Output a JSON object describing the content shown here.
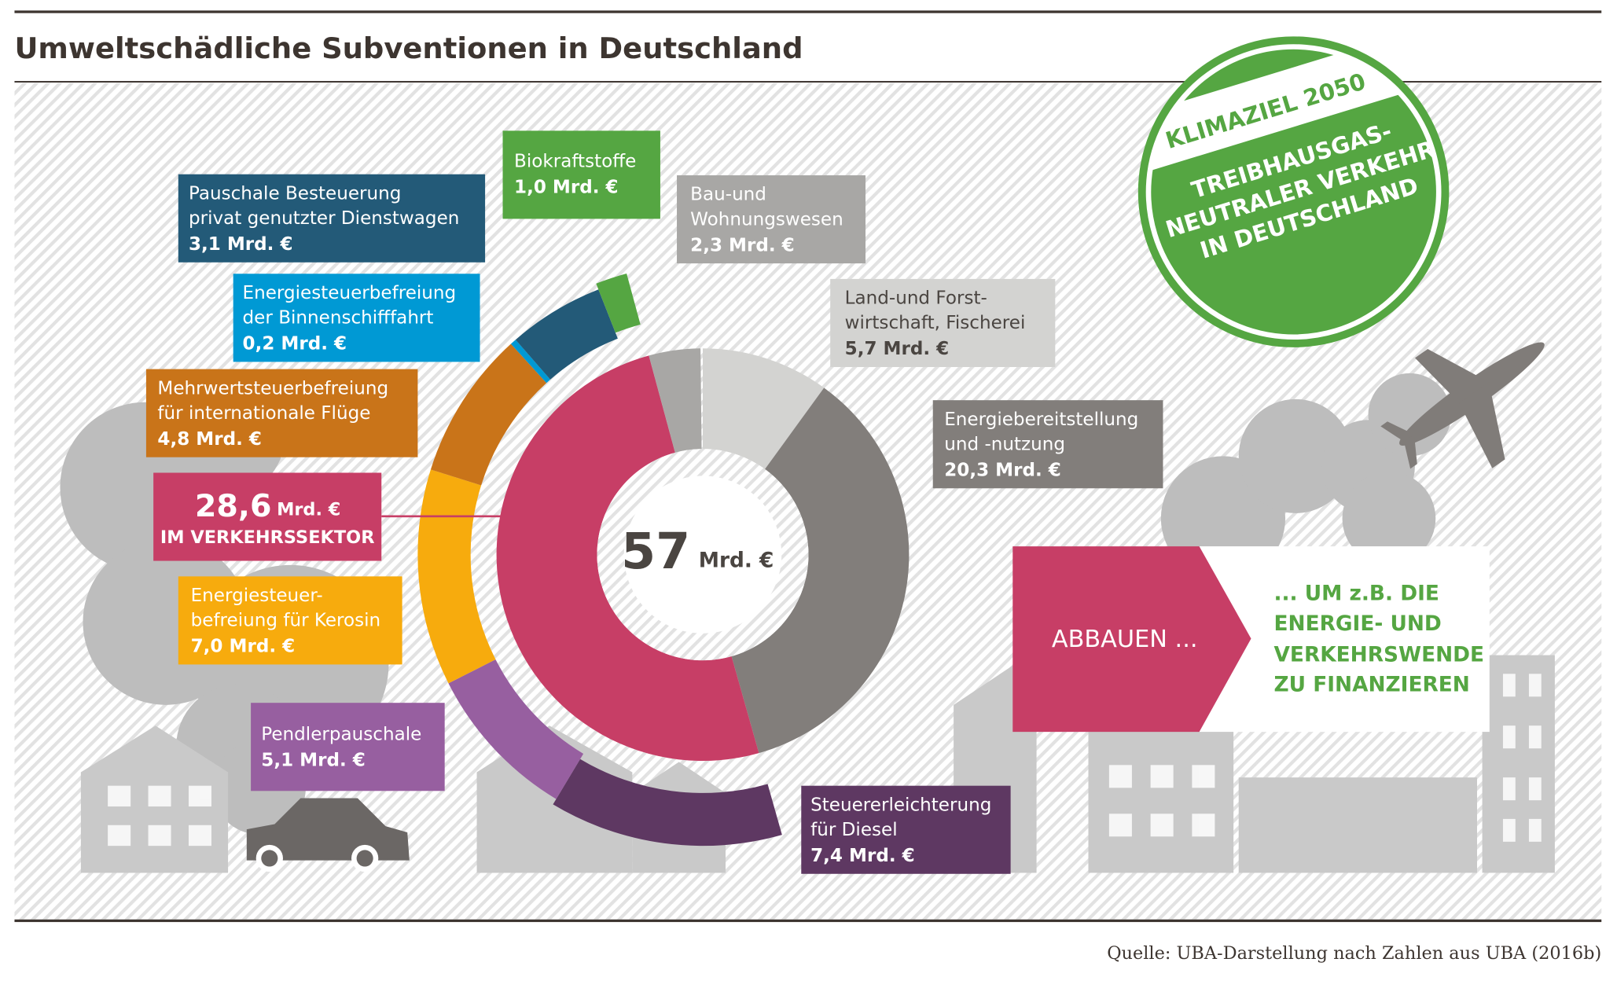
{
  "title": "Umweltschädliche Subventionen in Deutschland",
  "source": "Quelle: UBA-Darstellung nach Zahlen aus UBA (2016b)",
  "center_label": {
    "value": "57",
    "unit": "Mrd. €"
  },
  "stamp": {
    "band": "KLIMAZIEL 2050",
    "lines": [
      "TREIBHAUSGAS-",
      "NEUTRALER VERKEHR",
      "IN DEUTSCHLAND"
    ],
    "color": "#55a642"
  },
  "transport_total": {
    "value": "28,6",
    "unit": "Mrd. €",
    "caption": "IM VERKEHRSSEKTOR"
  },
  "arrow": {
    "label": "ABBAUEN ...",
    "target_lines": [
      "... UM z.B. DIE",
      "ENERGIE- UND",
      "VERKEHRSWENDE",
      "ZU FINANZIEREN"
    ]
  },
  "labels": {
    "dienstwagen": {
      "lines": [
        "Pauschale Besteuerung",
        "privat genutzter Dienstwagen"
      ],
      "value": "3,1 Mrd. €"
    },
    "bio": {
      "lines": [
        "Biokraftstoffe"
      ],
      "value": "1,0 Mrd. €"
    },
    "bau": {
      "lines": [
        "Bau-und",
        "Wohnungswesen"
      ],
      "value": "2,3 Mrd. €"
    },
    "binnen": {
      "lines": [
        "Energiesteuerbefreiung",
        "der Binnenschifffahrt"
      ],
      "value": "0,2 Mrd. €"
    },
    "land": {
      "lines": [
        "Land-und Forst-",
        "wirtschaft, Fischerei"
      ],
      "value": "5,7 Mrd. €"
    },
    "mwst": {
      "lines": [
        "Mehrwertsteuerbefreiung",
        "für internationale Flüge"
      ],
      "value": "4,8 Mrd. €"
    },
    "energie": {
      "lines": [
        "Energiebereitstellung",
        "und -nutzung"
      ],
      "value": "20,3 Mrd. €"
    },
    "kerosin": {
      "lines": [
        "Energiesteuer-",
        "befreiung für Kerosin"
      ],
      "value": "7,0 Mrd. €"
    },
    "pendler": {
      "lines": [
        "Pendlerpauschale"
      ],
      "value": "5,1 Mrd. €"
    },
    "diesel": {
      "lines": [
        "Steuererleichterung",
        "für Diesel"
      ],
      "value": "7,4 Mrd. €"
    }
  },
  "chart_data": {
    "type": "pie",
    "variant": "nested donut",
    "unit": "Mrd. €",
    "total": 57,
    "inner": [
      {
        "name": "Land-und Forstwirtschaft, Fischerei",
        "value": 5.7,
        "color": "#d3d3d1"
      },
      {
        "name": "Energiebereitstellung und -nutzung",
        "value": 20.3,
        "color": "#827e7b"
      },
      {
        "name": "Verkehrssektor",
        "value": 28.6,
        "color": "#c73e66"
      },
      {
        "name": "Bau-und Wohnungswesen",
        "value": 2.3,
        "color": "#a8a7a5"
      }
    ],
    "outer": [
      {
        "name": "Steuererleichterung für Diesel",
        "value": 7.4,
        "color": "#5e3862"
      },
      {
        "name": "Pendlerpauschale",
        "value": 5.1,
        "color": "#975fa0"
      },
      {
        "name": "Energiesteuerbefreiung für Kerosin",
        "value": 7.0,
        "color": "#f7ab0d"
      },
      {
        "name": "Mehrwertsteuerbefreiung für internationale Flüge",
        "value": 4.8,
        "color": "#c97419"
      },
      {
        "name": "Energiesteuerbefreiung der Binnenschifffahrt",
        "value": 0.2,
        "color": "#0099d4"
      },
      {
        "name": "Pauschale Besteuerung privat genutzter Dienstwagen",
        "value": 3.1,
        "color": "#235a78"
      },
      {
        "name": "Biokraftstoffe",
        "value": 1.0,
        "color": "#55a642"
      }
    ]
  }
}
